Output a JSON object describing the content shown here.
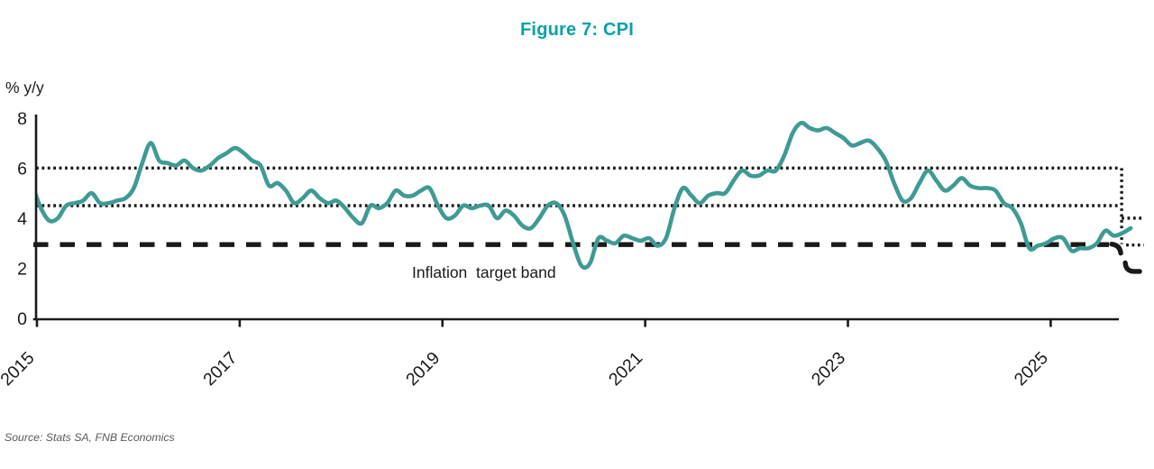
{
  "header": {
    "title": "Figure 7: CPI"
  },
  "colors": {
    "title_teal": "#07a2a9",
    "line_teal": "#3f9a94",
    "axis_black": "#1a1a1a",
    "source_gray": "#58595b"
  },
  "chart_data": {
    "type": "line",
    "title": "Figure 7: CPI",
    "ylabel": "% y/y",
    "ylim": [
      0,
      8
    ],
    "yticks": [
      0,
      2,
      4,
      6,
      8
    ],
    "xticks": [
      2015,
      2017,
      2019,
      2021,
      2023,
      2025
    ],
    "grid": false,
    "legend": "none",
    "source": "Source: Stats SA, FNB Economics",
    "series": [
      {
        "name": "CPI",
        "freq": "monthly",
        "x_start": "2014-12",
        "x_end": "2025-10",
        "values": [
          5.3,
          4.4,
          3.9,
          4.0,
          4.5,
          4.6,
          4.7,
          5.0,
          4.6,
          4.6,
          4.7,
          4.8,
          5.2,
          6.2,
          7.0,
          6.3,
          6.2,
          6.1,
          6.3,
          6.0,
          5.9,
          6.1,
          6.4,
          6.6,
          6.8,
          6.6,
          6.3,
          6.1,
          5.3,
          5.4,
          5.1,
          4.6,
          4.8,
          5.1,
          4.8,
          4.6,
          4.7,
          4.4,
          4.0,
          3.8,
          4.5,
          4.4,
          4.6,
          5.1,
          4.9,
          4.9,
          5.1,
          5.2,
          4.5,
          4.0,
          4.1,
          4.5,
          4.4,
          4.5,
          4.5,
          4.0,
          4.3,
          4.1,
          3.7,
          3.6,
          4.0,
          4.5,
          4.6,
          4.1,
          3.0,
          2.1,
          2.2,
          3.2,
          3.1,
          3.0,
          3.3,
          3.2,
          3.1,
          3.2,
          2.9,
          3.2,
          4.4,
          5.2,
          4.9,
          4.6,
          4.9,
          5.0,
          5.0,
          5.5,
          5.9,
          5.7,
          5.7,
          5.9,
          5.9,
          6.5,
          7.4,
          7.8,
          7.6,
          7.5,
          7.6,
          7.4,
          7.2,
          6.9,
          7.0,
          7.1,
          6.8,
          6.3,
          5.4,
          4.7,
          4.8,
          5.4,
          5.9,
          5.5,
          5.1,
          5.3,
          5.6,
          5.3,
          5.2,
          5.2,
          5.1,
          4.6,
          4.4,
          3.8,
          2.8,
          2.9,
          3.0,
          3.2,
          3.2,
          2.7,
          2.8,
          2.8,
          3.0,
          3.5,
          3.3,
          3.4,
          3.6
        ]
      }
    ],
    "target_band": {
      "label": "Inflation  target band",
      "upper": {
        "value": 6,
        "style": "dotted"
      },
      "midpoint": {
        "value": 4.5,
        "style": "dotted"
      },
      "lower": {
        "value": 3,
        "style": "dashed"
      },
      "revision": {
        "start_year_frac": 2025.7,
        "end_year_frac": 2025.92,
        "upper": 4,
        "midpoint": 3,
        "lower": 2
      }
    }
  }
}
